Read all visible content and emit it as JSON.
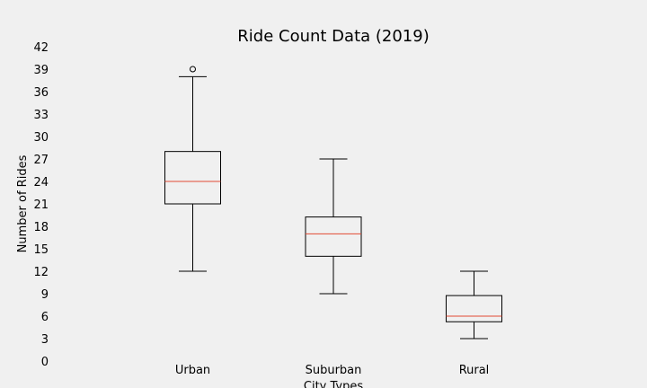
{
  "chart_data": {
    "type": "box",
    "title": "Ride Count Data (2019)",
    "xlabel": "City Types",
    "ylabel": "Number of Rides",
    "ylim": [
      0,
      42
    ],
    "yticks": [
      0,
      3,
      6,
      9,
      12,
      15,
      18,
      21,
      24,
      27,
      30,
      33,
      36,
      39,
      42
    ],
    "grid": false,
    "colors": {
      "background": "#f0f0f0",
      "median": "#e24a33",
      "box": "#000000"
    },
    "categories": [
      "Urban",
      "Suburban",
      "Rural"
    ],
    "boxes": [
      {
        "name": "Urban",
        "whisker_low": 12,
        "q1": 21,
        "median": 24,
        "q3": 28,
        "whisker_high": 38,
        "outliers": [
          39
        ]
      },
      {
        "name": "Suburban",
        "whisker_low": 9,
        "q1": 14,
        "median": 17,
        "q3": 19.25,
        "whisker_high": 27,
        "outliers": []
      },
      {
        "name": "Rural",
        "whisker_low": 3,
        "q1": 5.25,
        "median": 6,
        "q3": 8.75,
        "whisker_high": 12,
        "outliers": []
      }
    ]
  }
}
